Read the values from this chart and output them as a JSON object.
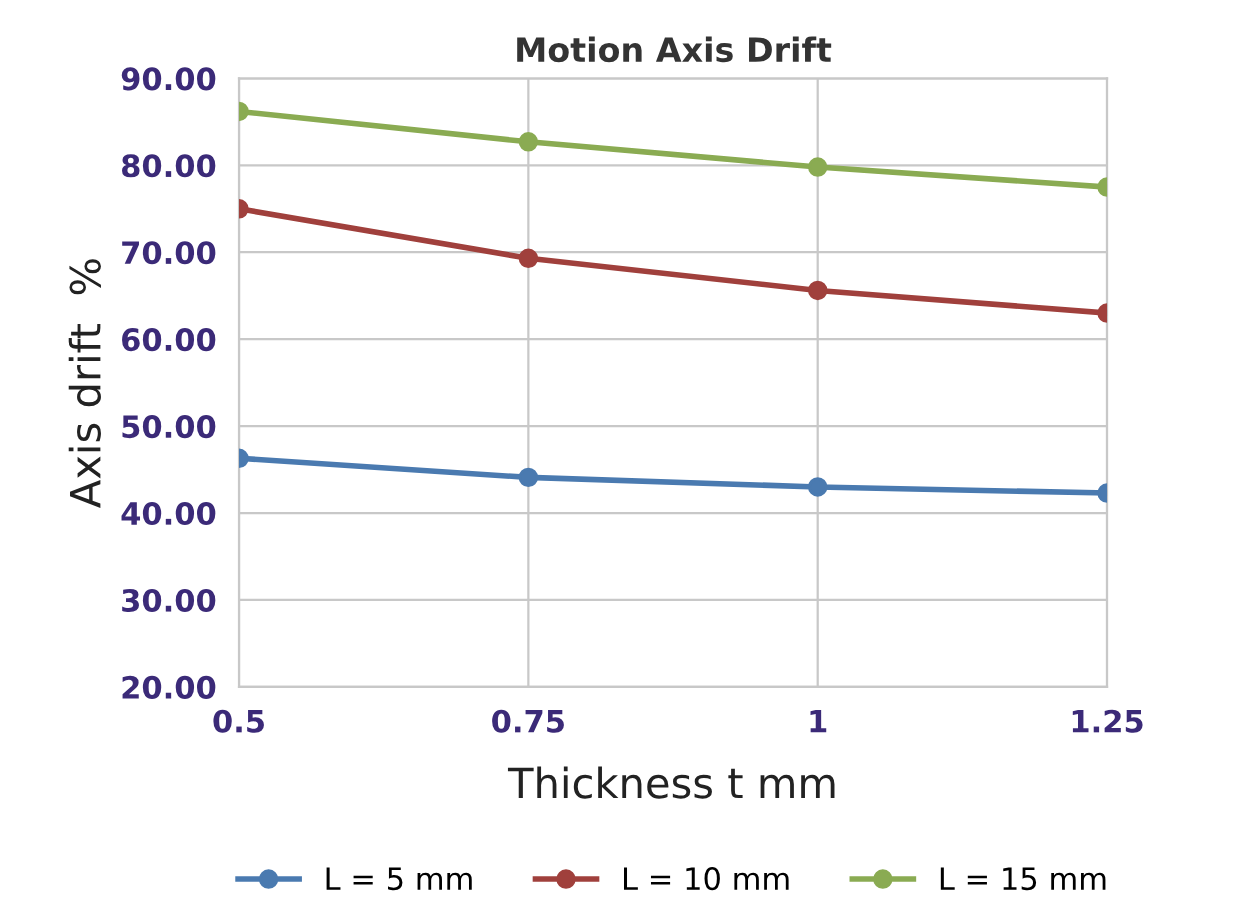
{
  "chart_data": {
    "type": "line",
    "title": "Motion Axis Drift",
    "xlabel": "Thickness t mm",
    "ylabel": "Axis drift  %",
    "x": [
      0.5,
      0.75,
      1,
      1.25
    ],
    "series": [
      {
        "name": "L = 5 mm",
        "color": "#4a7ab0",
        "values": [
          46.3,
          44.1,
          43.0,
          42.3
        ]
      },
      {
        "name": "L = 10 mm",
        "color": "#a0403c",
        "values": [
          75.0,
          69.3,
          65.6,
          63.0
        ]
      },
      {
        "name": "L = 15 mm",
        "color": "#8aab52",
        "values": [
          86.2,
          82.7,
          79.8,
          77.5
        ]
      }
    ],
    "xlim": [
      0.5,
      1.25
    ],
    "xticks": [
      0.5,
      0.75,
      1,
      1.25
    ],
    "ylim": [
      20,
      90
    ],
    "yticks": [
      {
        "value": 20,
        "label": "20.00"
      },
      {
        "value": 30,
        "label": "30.00"
      },
      {
        "value": 40,
        "label": "40.00"
      },
      {
        "value": 50,
        "label": "50.00"
      },
      {
        "value": 60,
        "label": "60.00"
      },
      {
        "value": 70,
        "label": "70.00"
      },
      {
        "value": 80,
        "label": "80.00"
      },
      {
        "value": 90,
        "label": "90.00"
      }
    ],
    "grid": true,
    "legend": "bottom",
    "marker": "circle",
    "line_style": "solid"
  }
}
